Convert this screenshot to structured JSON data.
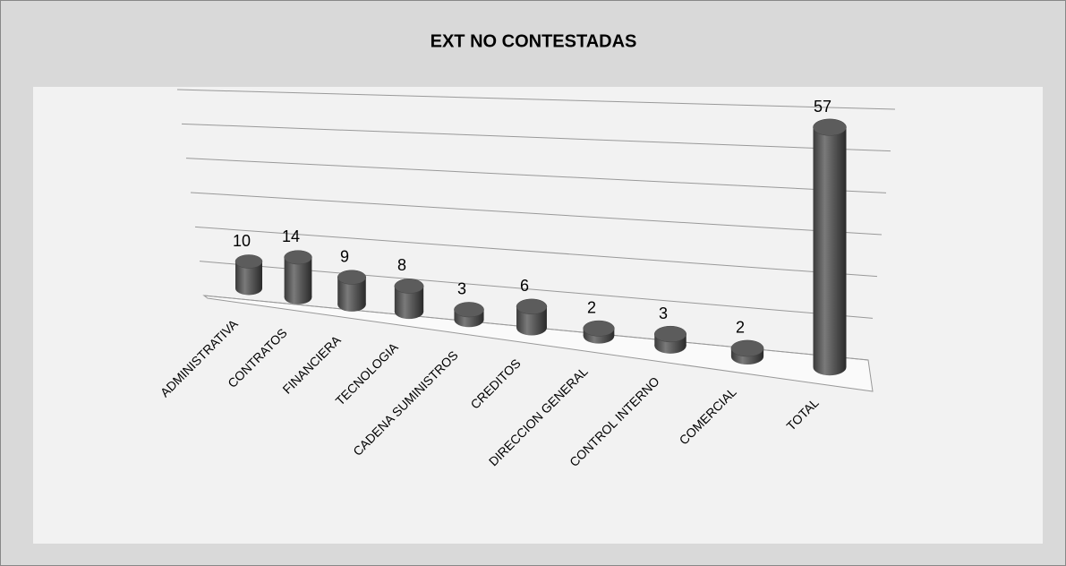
{
  "chart_data": {
    "type": "bar3d",
    "title": "EXT NO CONTESTADAS",
    "categories": [
      "ADMINISTRATIVA",
      "CONTRATOS",
      "FINANCIERA",
      "TECNOLOGIA",
      "CADENA SUMINISTROS",
      "CREDITOS",
      "DIRECCION GENERAL",
      "CONTROL INTERNO",
      "COMERCIAL",
      "TOTAL"
    ],
    "values": [
      10,
      14,
      9,
      8,
      3,
      6,
      2,
      3,
      2,
      57
    ],
    "color": "#5a5a5a",
    "ylim": [
      0,
      60
    ],
    "yticks": [
      0,
      10,
      20,
      30,
      40,
      50,
      60
    ],
    "grid": true
  }
}
